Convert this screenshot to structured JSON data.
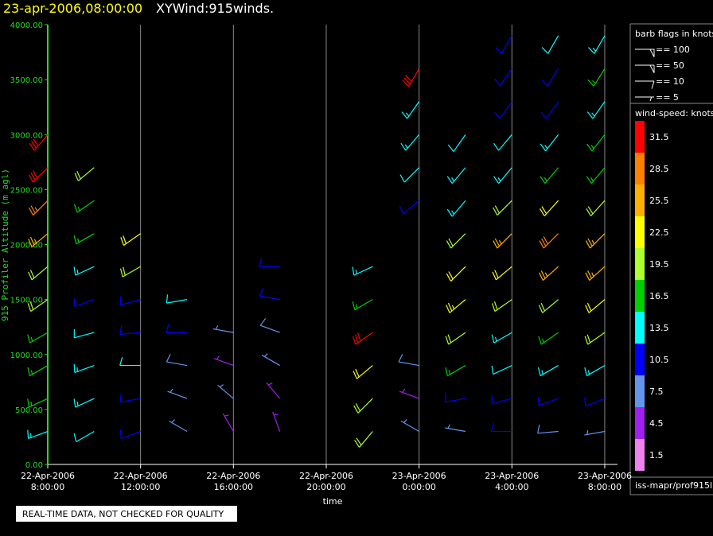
{
  "chart_data": {
    "type": "wind_barb",
    "title": "23-apr-2006,08:00:00",
    "subtitle": "XYWind:915winds.",
    "y_label": "915 Profiler Altitude (m agl)",
    "x_label": "time",
    "footer": "REAL-TIME DATA, NOT CHECKED FOR QUALITY",
    "source": "iss-mapr/prof915l",
    "ylim": [
      0,
      4000
    ],
    "yticks": [
      {
        "value": 0,
        "label": "0.00"
      },
      {
        "value": 500,
        "label": "500.00"
      },
      {
        "value": 1000,
        "label": "1000.00"
      },
      {
        "value": 1500,
        "label": "1500.00"
      },
      {
        "value": 2000,
        "label": "2000.00"
      },
      {
        "value": 2500,
        "label": "2500.00"
      },
      {
        "value": 3000,
        "label": "3000.00"
      },
      {
        "value": 3500,
        "label": "3500.00"
      },
      {
        "value": 4000,
        "label": "4000.00"
      }
    ],
    "xlim": [
      "2006-04-22T08:00",
      "2006-04-23T08:33"
    ],
    "xticks": [
      {
        "value": "2006-04-22T08:00",
        "label": [
          "22-Apr-2006",
          "8:00:00"
        ]
      },
      {
        "value": "2006-04-22T12:00",
        "label": [
          "22-Apr-2006",
          "12:00:00"
        ]
      },
      {
        "value": "2006-04-22T16:00",
        "label": [
          "22-Apr-2006",
          "16:00:00"
        ]
      },
      {
        "value": "2006-04-22T20:00",
        "label": [
          "22-Apr-2006",
          "20:00:00"
        ]
      },
      {
        "value": "2006-04-23T00:00",
        "label": [
          "23-Apr-2006",
          "0:00:00"
        ]
      },
      {
        "value": "2006-04-23T04:00",
        "label": [
          "23-Apr-2006",
          "4:00:00"
        ]
      },
      {
        "value": "2006-04-23T08:00",
        "label": [
          "23-Apr-2006",
          "8:00:00"
        ]
      }
    ],
    "grid": true,
    "barb_flags": {
      "title": "barb flags in knots",
      "items": [
        {
          "value": 100,
          "label": "== 100"
        },
        {
          "value": 50,
          "label": "== 50"
        },
        {
          "value": 10,
          "label": "== 10"
        },
        {
          "value": 5,
          "label": "== 5"
        }
      ]
    },
    "colorbar": {
      "title": "wind-speed: knots",
      "levels": [
        1.5,
        4.5,
        7.5,
        10.5,
        13.5,
        16.5,
        19.5,
        22.5,
        25.5,
        28.5,
        31.5
      ],
      "colors": [
        "#ee82ee",
        "#a020f0",
        "#6495ed",
        "#0000ff",
        "#00ffff",
        "#00d000",
        "#adff2f",
        "#ffff00",
        "#ffb000",
        "#ff8000",
        "#ff0000"
      ]
    },
    "profiles": [
      {
        "time": "2006-04-22T08:00",
        "heights": [
          300,
          600,
          900,
          1200,
          1500,
          1800,
          2100,
          2400,
          2700,
          3000
        ],
        "speed": [
          14,
          15,
          16,
          17,
          18,
          20,
          24,
          27,
          30,
          31
        ],
        "direction": [
          250,
          245,
          240,
          240,
          235,
          230,
          230,
          225,
          225,
          220
        ]
      },
      {
        "time": "2006-04-22T10:00",
        "heights": [
          300,
          600,
          900,
          1200,
          1500,
          1800,
          2100,
          2400,
          2700
        ],
        "speed": [
          12,
          13,
          14,
          12,
          11,
          13,
          15,
          17,
          18
        ],
        "direction": [
          240,
          245,
          250,
          255,
          250,
          245,
          240,
          235,
          230
        ]
      },
      {
        "time": "2006-04-22T12:00",
        "heights": [
          300,
          600,
          900,
          1200,
          1500,
          1800,
          2100
        ],
        "speed": [
          9,
          10,
          12,
          10,
          11,
          20,
          22
        ],
        "direction": [
          250,
          260,
          270,
          265,
          255,
          240,
          235
        ]
      },
      {
        "time": "2006-04-22T14:00",
        "heights": [
          300,
          600,
          900,
          1200,
          1500
        ],
        "speed": [
          7,
          6,
          8,
          10,
          12
        ],
        "direction": [
          300,
          290,
          280,
          270,
          260
        ]
      },
      {
        "time": "2006-04-22T16:00",
        "heights": [
          300,
          600,
          900,
          1200
        ],
        "speed": [
          5,
          6,
          5,
          7
        ],
        "direction": [
          330,
          310,
          290,
          280
        ]
      },
      {
        "time": "2006-04-22T18:00",
        "heights": [
          300,
          600,
          900,
          1200,
          1500,
          1800
        ],
        "speed": [
          4,
          5,
          6,
          8,
          9,
          10
        ],
        "direction": [
          340,
          320,
          300,
          290,
          280,
          270
        ]
      },
      {
        "time": "2006-04-22T22:00",
        "heights": [
          300,
          600,
          900,
          1200,
          1500,
          1800
        ],
        "speed": [
          18,
          19,
          22,
          30,
          15,
          14
        ],
        "direction": [
          220,
          225,
          230,
          235,
          240,
          245
        ]
      },
      {
        "time": "2006-04-23T00:00",
        "heights": [
          300,
          600,
          900,
          2400,
          2700,
          3000,
          3300,
          3600
        ],
        "speed": [
          6,
          5,
          8,
          11,
          12,
          13,
          14,
          32
        ],
        "direction": [
          300,
          290,
          280,
          230,
          225,
          220,
          215,
          210
        ]
      },
      {
        "time": "2006-04-23T02:00",
        "heights": [
          300,
          600,
          900,
          1200,
          1500,
          1800,
          2100,
          2400,
          2700,
          3000
        ],
        "speed": [
          7,
          9,
          17,
          19,
          23,
          21,
          18,
          14,
          13,
          12
        ],
        "direction": [
          280,
          260,
          240,
          235,
          230,
          225,
          225,
          220,
          220,
          215
        ]
      },
      {
        "time": "2006-04-23T04:00",
        "heights": [
          300,
          600,
          900,
          1200,
          1500,
          1800,
          2100,
          2400,
          2700,
          3000,
          3300,
          3600,
          3900
        ],
        "speed": [
          9,
          10,
          12,
          14,
          18,
          22,
          25,
          20,
          14,
          12,
          11,
          10,
          9
        ],
        "direction": [
          270,
          255,
          245,
          240,
          235,
          230,
          225,
          225,
          220,
          220,
          215,
          215,
          210
        ]
      },
      {
        "time": "2006-04-23T06:00",
        "heights": [
          300,
          600,
          900,
          1200,
          1500,
          1800,
          2100,
          2400,
          2700,
          3000,
          3300,
          3600,
          3900
        ],
        "speed": [
          8,
          11,
          13,
          16,
          20,
          24,
          28,
          22,
          16,
          13,
          11,
          10,
          12
        ],
        "direction": [
          265,
          250,
          240,
          235,
          230,
          228,
          225,
          222,
          220,
          218,
          215,
          212,
          210
        ]
      },
      {
        "time": "2006-04-23T08:00",
        "heights": [
          300,
          600,
          900,
          1200,
          1500,
          1800,
          2100,
          2400,
          2700,
          3000,
          3300,
          3600,
          3900
        ],
        "speed": [
          7,
          10,
          14,
          18,
          22,
          26,
          24,
          20,
          17,
          15,
          13,
          16,
          14
        ],
        "direction": [
          260,
          248,
          240,
          235,
          230,
          228,
          225,
          222,
          220,
          218,
          215,
          212,
          210
        ]
      }
    ]
  }
}
